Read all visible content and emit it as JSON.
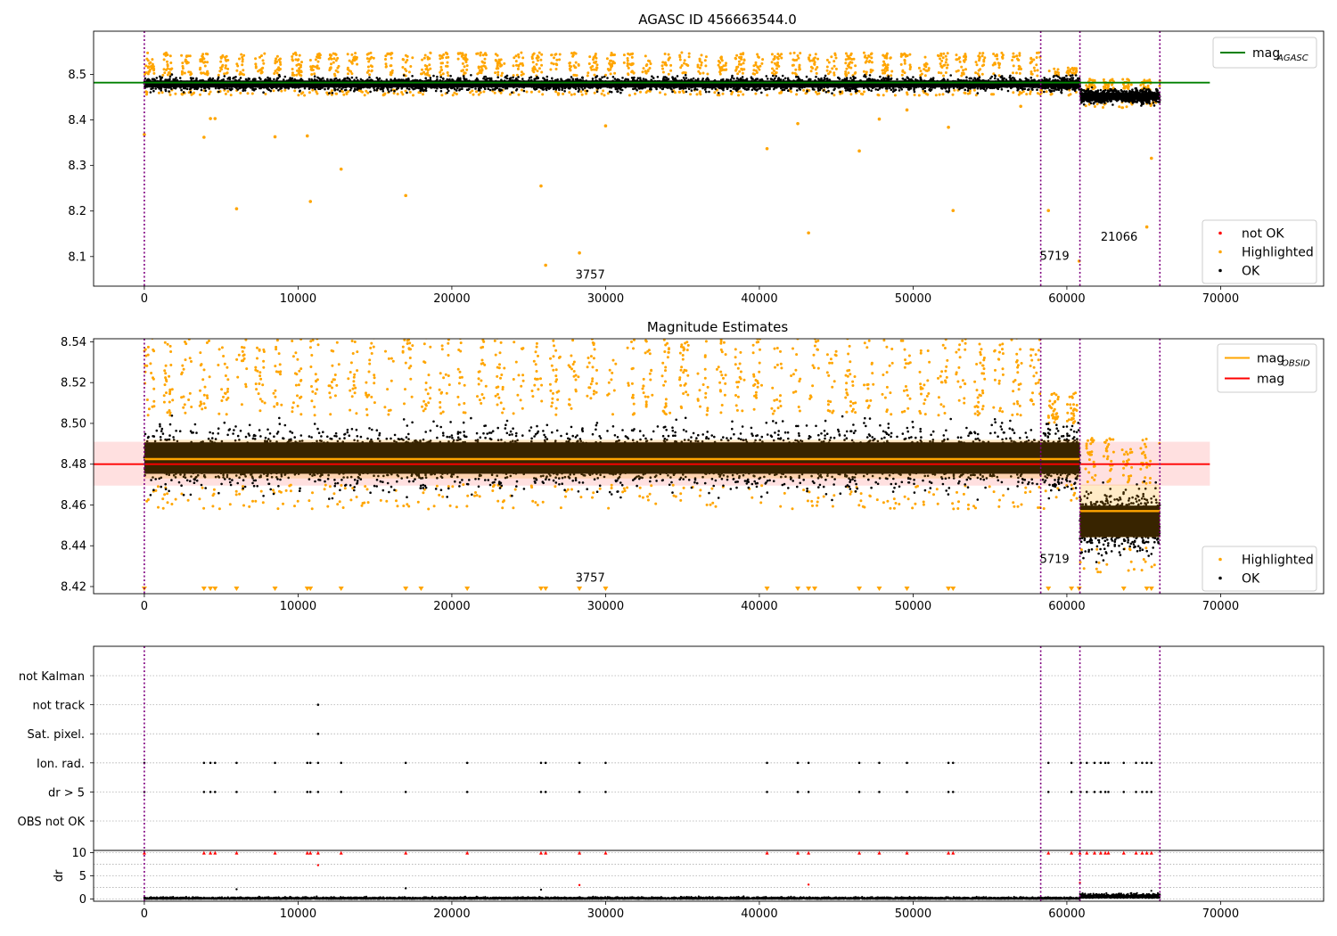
{
  "figure": {
    "title": "AGASC ID 456663544.0"
  },
  "chart_data": [
    {
      "type": "scatter",
      "title": "AGASC ID 456663544.0",
      "xlim": [
        -3300,
        76700
      ],
      "ylim": [
        8.035,
        8.595
      ],
      "xticks": [
        0,
        10000,
        20000,
        30000,
        40000,
        50000,
        60000,
        70000
      ],
      "yticks": [
        8.1,
        8.2,
        8.3,
        8.4,
        8.5
      ],
      "vlines": [
        0,
        58300,
        60850,
        66050
      ],
      "obs_labels": [
        {
          "text": "3757",
          "x": 29000,
          "y": 8.052
        },
        {
          "text": "5719",
          "x": 59200,
          "y": 8.093
        },
        {
          "text": "21066",
          "x": 63400,
          "y": 8.135
        }
      ],
      "hlines": [
        {
          "name": "mag_AGASC",
          "y": 8.482,
          "x": [
            -3300,
            69300
          ],
          "color": "#008000"
        }
      ],
      "segments": [
        {
          "x": [
            0,
            58300
          ],
          "mag": 8.479,
          "spread": 0.007,
          "band": 0.013,
          "hi": [
            8.497,
            8.548
          ]
        },
        {
          "x": [
            58300,
            60850
          ],
          "mag": 8.479,
          "spread": 0.007,
          "band": 0.013,
          "hi": [
            8.497,
            8.515
          ]
        },
        {
          "x": [
            60850,
            66050
          ],
          "mag": 8.452,
          "spread": 0.007,
          "band": 0.013,
          "hi": [
            8.466,
            8.49
          ]
        }
      ],
      "outliers": [
        [
          0,
          8.368
        ],
        [
          3880,
          8.362
        ],
        [
          4300,
          8.403
        ],
        [
          4600,
          8.403
        ],
        [
          6000,
          8.205
        ],
        [
          8500,
          8.363
        ],
        [
          10600,
          8.365
        ],
        [
          10800,
          8.221
        ],
        [
          12800,
          8.292
        ],
        [
          17000,
          8.234
        ],
        [
          25800,
          8.255
        ],
        [
          26100,
          8.081
        ],
        [
          28300,
          8.108
        ],
        [
          30000,
          8.387
        ],
        [
          40500,
          8.337
        ],
        [
          42500,
          8.392
        ],
        [
          43200,
          8.152
        ],
        [
          46500,
          8.332
        ],
        [
          47800,
          8.402
        ],
        [
          49600,
          8.422
        ],
        [
          52300,
          8.384
        ],
        [
          52600,
          8.201
        ],
        [
          57000,
          8.43
        ],
        [
          58800,
          8.201
        ],
        [
          60800,
          8.09
        ],
        [
          65200,
          8.165
        ],
        [
          65500,
          8.316
        ]
      ],
      "legend": {
        "position": "lower right",
        "entries": [
          {
            "label": "not OK",
            "color": "#ff0000"
          },
          {
            "label": "Highlighted",
            "color": "#ffa500"
          },
          {
            "label": "OK",
            "color": "#000000"
          }
        ]
      },
      "legend_top": {
        "position": "upper right",
        "entries": [
          {
            "label": "mag",
            "sub": "AGASC",
            "color": "#008000"
          }
        ]
      },
      "colors": {
        "ok": "#000000",
        "highlighted": "#ffa500",
        "not_ok": "#ff0000",
        "vline": "#800080"
      }
    },
    {
      "type": "scatter",
      "title": "Magnitude Estimates",
      "xlim": [
        -3300,
        76700
      ],
      "ylim": [
        8.4165,
        8.5415
      ],
      "xticks": [
        0,
        10000,
        20000,
        30000,
        40000,
        50000,
        60000,
        70000
      ],
      "yticks": [
        8.42,
        8.44,
        8.46,
        8.48,
        8.5,
        8.52,
        8.54
      ],
      "vlines": [
        0,
        58300,
        60850,
        66050
      ],
      "obs_labels": [
        {
          "text": "3757",
          "x": 29000,
          "y": 8.4225
        },
        {
          "text": "5719",
          "x": 59200,
          "y": 8.4315
        }
      ],
      "mag": {
        "y": 8.48,
        "band": [
          8.4695,
          8.491
        ],
        "x": [
          -3300,
          69300
        ],
        "color": "#ff0000"
      },
      "mag_obsid": [
        {
          "x": [
            0,
            58300
          ],
          "y": 8.4825,
          "band": [
            8.473,
            8.492
          ]
        },
        {
          "x": [
            58300,
            60850
          ],
          "y": 8.4825,
          "band": [
            8.473,
            8.492
          ]
        },
        {
          "x": [
            60850,
            66050
          ],
          "y": 8.457,
          "band": [
            8.444,
            8.47
          ]
        }
      ],
      "segments": [
        {
          "x": [
            0,
            58300
          ],
          "mag": 8.483,
          "spread": 0.007,
          "band": 0.013,
          "hi": [
            8.504,
            8.548
          ]
        },
        {
          "x": [
            58300,
            60850
          ],
          "mag": 8.483,
          "spread": 0.007,
          "band": 0.013,
          "hi": [
            8.5,
            8.515
          ]
        },
        {
          "x": [
            60850,
            66050
          ],
          "mag": 8.452,
          "spread": 0.007,
          "band": 0.013,
          "hi": [
            8.47,
            8.493
          ]
        }
      ],
      "clipped_low": [
        0,
        3880,
        4300,
        4600,
        6000,
        8500,
        10600,
        10800,
        12800,
        17000,
        18000,
        21000,
        25800,
        26100,
        28300,
        30000,
        40500,
        42500,
        43200,
        43600,
        46500,
        47800,
        49600,
        52300,
        52600,
        58800,
        60300,
        60800,
        63700,
        65200,
        65500
      ],
      "legend": {
        "position": "lower right",
        "entries": [
          {
            "label": "Highlighted",
            "color": "#ffa500"
          },
          {
            "label": "OK",
            "color": "#000000"
          }
        ]
      },
      "legend_top": {
        "position": "upper right",
        "entries": [
          {
            "label": "mag",
            "sub": "OBSID",
            "color": "#ffa500"
          },
          {
            "label": "mag",
            "color": "#ff0000"
          }
        ]
      }
    },
    {
      "type": "scatter",
      "title": "",
      "xlim": [
        -3300,
        76700
      ],
      "xticks": [
        0,
        10000,
        20000,
        30000,
        40000,
        50000,
        60000,
        70000
      ],
      "vlines": [
        0,
        58300,
        60850,
        66050
      ],
      "flag_labels": [
        "not Kalman",
        "not track",
        "Sat. pixel.",
        "Ion. rad.",
        "dr > 5",
        "OBS not OK"
      ],
      "flags": {
        "not track": [
          11300
        ],
        "Sat. pixel.": [
          11300
        ],
        "Ion. rad.": [
          0,
          3880,
          4300,
          4600,
          6000,
          8500,
          10600,
          10800,
          11300,
          12800,
          17000,
          21000,
          25800,
          26100,
          28300,
          30000,
          40500,
          42500,
          43200,
          46500,
          47800,
          49600,
          52300,
          52600,
          58800,
          60300,
          60900,
          61300,
          61800,
          62200,
          62500,
          62700,
          63700,
          64500,
          64900,
          65200,
          65500
        ],
        "dr > 5": [
          0,
          3880,
          4300,
          4600,
          6000,
          8500,
          10600,
          10800,
          11300,
          12800,
          17000,
          21000,
          25800,
          26100,
          28300,
          30000,
          40500,
          42500,
          43200,
          46500,
          47800,
          49600,
          52300,
          52600,
          58800,
          60300,
          60900,
          61300,
          61800,
          62200,
          62500,
          62700,
          63700,
          64500,
          64900,
          65200,
          65500
        ]
      },
      "dr_ylim": [
        -0.5,
        10.5
      ],
      "dr_yticks": [
        0,
        5,
        10
      ],
      "dr_ylabel": "dr",
      "dr_clipped_high": [
        0,
        3880,
        4300,
        4600,
        6000,
        8500,
        10600,
        10800,
        11300,
        12800,
        17000,
        21000,
        25800,
        26100,
        28300,
        30000,
        40500,
        42500,
        43200,
        46500,
        47800,
        49600,
        52300,
        52600,
        58800,
        60300,
        60850,
        61300,
        61800,
        62200,
        62500,
        62700,
        63700,
        64500,
        64900,
        65200,
        65500
      ],
      "dr_points": [
        [
          11300,
          7.3
        ],
        [
          28300,
          3.0
        ],
        [
          43200,
          3.1
        ],
        [
          60850,
          3.5
        ],
        [
          6000,
          2.1
        ],
        [
          17000,
          2.3
        ],
        [
          25800,
          2.0
        ]
      ]
    }
  ]
}
